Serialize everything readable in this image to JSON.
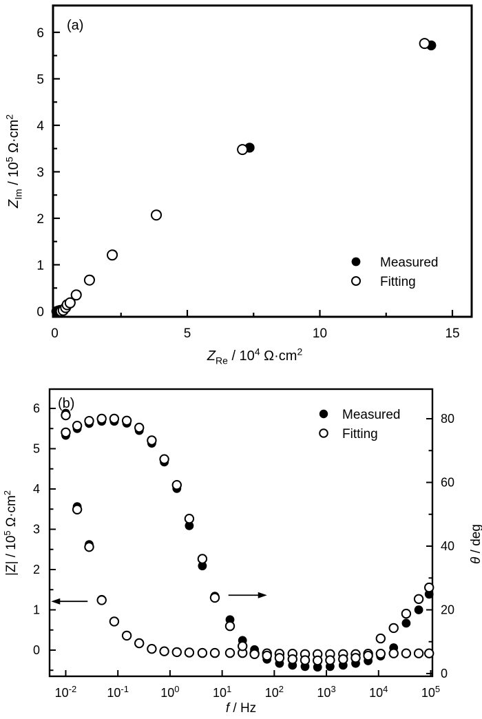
{
  "figure": {
    "background": "#ffffff",
    "ink": "#000000"
  },
  "chart_data": [
    {
      "type": "scatter",
      "panel": "(a)",
      "xlabel": "Z_Re / 10^4 Ω·cm^2",
      "ylabel": "Z_Im / 10^5 Ω·cm^2",
      "xlabel_segments": [
        {
          "t": "Z",
          "it": 1
        },
        {
          "t": "Re",
          "sub": 1
        },
        {
          "t": " / 10"
        },
        {
          "t": "4",
          "sup": 1
        },
        {
          "t": " Ω·cm"
        },
        {
          "t": "2",
          "sup": 1
        }
      ],
      "ylabel_segments": [
        {
          "t": "Z",
          "it": 1
        },
        {
          "t": "Im",
          "sub": 1
        },
        {
          "t": " / 10"
        },
        {
          "t": "5",
          "sup": 1
        },
        {
          "t": " Ω·cm"
        },
        {
          "t": "2",
          "sup": 1
        }
      ],
      "xlim": [
        -0.065,
        15.727
      ],
      "ylim": [
        -0.119,
        6.577
      ],
      "x_major_ticks": [
        0,
        5,
        10,
        15
      ],
      "x_minor_ticks": [
        2.5,
        7.5,
        12.5
      ],
      "y_major_ticks": [
        0,
        1,
        2,
        3,
        4,
        5,
        6
      ],
      "y_minor_ticks": [
        0.5,
        1.5,
        2.5,
        3.5,
        4.5,
        5.5
      ],
      "grid": false,
      "legend_position": "inside lower-right",
      "legend": [
        {
          "label": "Measured",
          "marker": "filled-circle"
        },
        {
          "label": "Fitting",
          "marker": "open-circle"
        }
      ],
      "series": [
        {
          "name": "Measured",
          "marker": "filled-circle",
          "points": [
            [
              0.06,
              0.0
            ],
            [
              0.1,
              0.01
            ],
            [
              0.15,
              0.02
            ],
            [
              0.21,
              0.03
            ],
            [
              0.34,
              0.03
            ],
            [
              0.43,
              0.09
            ],
            [
              0.49,
              0.15
            ],
            [
              0.6,
              0.19
            ],
            [
              0.83,
              0.36
            ],
            [
              1.33,
              0.68
            ],
            [
              2.19,
              1.22
            ],
            [
              3.85,
              2.08
            ],
            [
              7.35,
              3.52
            ],
            [
              14.2,
              5.72
            ]
          ]
        },
        {
          "name": "Fitting",
          "marker": "open-circle",
          "points": [
            [
              0.24,
              0.0
            ],
            [
              0.32,
              0.02
            ],
            [
              0.41,
              0.08
            ],
            [
              0.47,
              0.14
            ],
            [
              0.58,
              0.18
            ],
            [
              0.81,
              0.35
            ],
            [
              1.31,
              0.67
            ],
            [
              2.17,
              1.21
            ],
            [
              3.83,
              2.07
            ],
            [
              7.08,
              3.48
            ],
            [
              13.95,
              5.76
            ]
          ]
        }
      ]
    },
    {
      "type": "scatter",
      "panel": "(b)",
      "x_scale": "log",
      "xlabel": "f / Hz",
      "xlabel_segments": [
        {
          "t": "f",
          "it": 1
        },
        {
          "t": " / Hz"
        }
      ],
      "ylabel_left": "|Z| / 10^5 Ω·cm^2",
      "ylabel_left_segments": [
        {
          "t": "|Z| / 10"
        },
        {
          "t": "5",
          "sup": 1
        },
        {
          "t": " Ω·cm"
        },
        {
          "t": "2",
          "sup": 1
        }
      ],
      "ylabel_right": "θ / deg",
      "ylabel_right_segments": [
        {
          "t": "θ",
          "it": 1
        },
        {
          "t": " / deg"
        }
      ],
      "xlim_log": [
        -2.31,
        5.033
      ],
      "ylim_left": [
        -0.65,
        6.479
      ],
      "ylim_right": [
        -0.865,
        89.3
      ],
      "x_major_tick_exponents": [
        -2,
        -1,
        0,
        1,
        2,
        3,
        4,
        5
      ],
      "y_left_major_ticks": [
        0,
        1,
        2,
        3,
        4,
        5,
        6
      ],
      "y_left_minor_ticks": [
        -0.5,
        0.5,
        1.5,
        2.5,
        3.5,
        4.5,
        5.5
      ],
      "y_right_major_ticks": [
        0,
        20,
        40,
        60,
        80
      ],
      "y_right_minor_ticks": [
        10,
        30,
        50,
        70
      ],
      "grid": false,
      "legend_position": "inside upper-right",
      "legend": [
        {
          "label": "Measured",
          "marker": "filled-circle"
        },
        {
          "label": "Fitting",
          "marker": "open-circle"
        }
      ],
      "series": [
        {
          "name": "Measured",
          "quantity": "|Z|",
          "axis": "left",
          "marker": "filled-circle",
          "points": [
            [
              -2.0,
              5.88
            ],
            [
              -1.78,
              3.56
            ],
            [
              -1.55,
              2.62
            ],
            [
              -1.31,
              1.26
            ],
            [
              -1.07,
              0.72
            ],
            [
              -0.83,
              0.37
            ],
            [
              -0.59,
              0.17
            ],
            [
              -0.35,
              0.03
            ],
            [
              -0.11,
              -0.03
            ],
            [
              0.13,
              -0.05
            ],
            [
              0.37,
              -0.06
            ],
            [
              0.62,
              -0.07
            ],
            [
              0.86,
              -0.07
            ],
            [
              1.15,
              -0.07
            ],
            [
              1.39,
              -0.07
            ],
            [
              1.62,
              -0.08
            ],
            [
              1.86,
              -0.08
            ],
            [
              2.1,
              -0.09
            ],
            [
              2.35,
              -0.09
            ],
            [
              2.59,
              -0.1
            ],
            [
              2.83,
              -0.1
            ],
            [
              3.07,
              -0.1
            ],
            [
              3.32,
              -0.1
            ],
            [
              3.56,
              -0.1
            ],
            [
              3.8,
              -0.09
            ],
            [
              4.04,
              -0.09
            ],
            [
              4.29,
              -0.08
            ],
            [
              4.53,
              -0.08
            ],
            [
              4.77,
              -0.08
            ],
            [
              4.97,
              -0.08
            ]
          ]
        },
        {
          "name": "Measured",
          "quantity": "theta",
          "axis": "right",
          "marker": "filled-circle",
          "points": [
            [
              -2.0,
              74.8
            ],
            [
              -1.78,
              76.9
            ],
            [
              -1.55,
              78.5
            ],
            [
              -1.31,
              79.2
            ],
            [
              -1.07,
              79.2
            ],
            [
              -0.83,
              78.6
            ],
            [
              -0.59,
              76.3
            ],
            [
              -0.35,
              72.3
            ],
            [
              -0.11,
              66.4
            ],
            [
              0.13,
              58.1
            ],
            [
              0.37,
              46.4
            ],
            [
              0.62,
              33.8
            ],
            [
              0.86,
              24.3
            ],
            [
              1.15,
              16.9
            ],
            [
              1.39,
              10.4
            ],
            [
              1.62,
              7.5
            ],
            [
              1.86,
              4.5
            ],
            [
              2.1,
              3.2
            ],
            [
              2.35,
              2.6
            ],
            [
              2.59,
              2.2
            ],
            [
              2.83,
              2.0
            ],
            [
              3.07,
              2.2
            ],
            [
              3.32,
              2.6
            ],
            [
              3.56,
              3.2
            ],
            [
              3.8,
              4.0
            ],
            [
              4.04,
              5.5
            ],
            [
              4.29,
              8.1
            ],
            [
              4.53,
              15.8
            ],
            [
              4.77,
              20.0
            ],
            [
              4.97,
              24.9
            ]
          ]
        },
        {
          "name": "Fitting",
          "quantity": "|Z|",
          "axis": "left",
          "marker": "open-circle",
          "points": [
            [
              -2.0,
              5.83
            ],
            [
              -1.78,
              3.49
            ],
            [
              -1.55,
              2.56
            ],
            [
              -1.31,
              1.24
            ],
            [
              -1.07,
              0.71
            ],
            [
              -0.83,
              0.36
            ],
            [
              -0.59,
              0.17
            ],
            [
              -0.35,
              0.03
            ],
            [
              -0.11,
              -0.03
            ],
            [
              0.13,
              -0.05
            ],
            [
              0.37,
              -0.06
            ],
            [
              0.62,
              -0.07
            ],
            [
              0.86,
              -0.07
            ],
            [
              1.15,
              -0.07
            ],
            [
              1.39,
              -0.07
            ],
            [
              1.62,
              -0.08
            ],
            [
              1.86,
              -0.08
            ],
            [
              2.1,
              -0.09
            ],
            [
              2.35,
              -0.09
            ],
            [
              2.59,
              -0.1
            ],
            [
              2.83,
              -0.1
            ],
            [
              3.07,
              -0.1
            ],
            [
              3.32,
              -0.1
            ],
            [
              3.56,
              -0.1
            ],
            [
              3.8,
              -0.09
            ],
            [
              4.04,
              -0.09
            ],
            [
              4.29,
              -0.08
            ],
            [
              4.53,
              -0.08
            ],
            [
              4.77,
              -0.08
            ],
            [
              4.97,
              -0.08
            ]
          ]
        },
        {
          "name": "Fitting",
          "quantity": "theta",
          "axis": "right",
          "marker": "open-circle",
          "points": [
            [
              -2.0,
              75.7
            ],
            [
              -1.78,
              77.8
            ],
            [
              -1.55,
              79.3
            ],
            [
              -1.31,
              80.0
            ],
            [
              -1.07,
              80.0
            ],
            [
              -0.83,
              79.4
            ],
            [
              -0.59,
              77.2
            ],
            [
              -0.35,
              73.2
            ],
            [
              -0.11,
              67.3
            ],
            [
              0.13,
              59.2
            ],
            [
              0.37,
              48.6
            ],
            [
              0.62,
              36.0
            ],
            [
              0.86,
              23.8
            ],
            [
              1.15,
              14.9
            ],
            [
              1.39,
              8.6
            ],
            [
              1.62,
              6.1
            ],
            [
              1.86,
              5.6
            ],
            [
              2.1,
              4.9
            ],
            [
              2.35,
              4.5
            ],
            [
              2.59,
              4.2
            ],
            [
              2.83,
              4.1
            ],
            [
              3.07,
              4.2
            ],
            [
              3.32,
              4.5
            ],
            [
              3.56,
              4.9
            ],
            [
              3.8,
              5.6
            ],
            [
              4.04,
              11.0
            ],
            [
              4.29,
              14.3
            ],
            [
              4.53,
              18.8
            ],
            [
              4.77,
              23.4
            ],
            [
              4.97,
              27.0
            ]
          ]
        }
      ],
      "annotations": [
        {
          "type": "arrow",
          "dir": "left",
          "axis": "left",
          "y": 1.21,
          "x_from": -1.58,
          "x_to": -2.28,
          "meaning": "points to |Z| axis"
        },
        {
          "type": "arrow",
          "dir": "right",
          "axis": "right",
          "y": 24.6,
          "x_from": 1.12,
          "x_to": 1.86,
          "meaning": "points to theta axis"
        }
      ]
    }
  ],
  "layout": {
    "panel_a_box": [
      77,
      8,
      685,
      460
    ],
    "panel_b_box": [
      72,
      565,
      628,
      982
    ]
  }
}
